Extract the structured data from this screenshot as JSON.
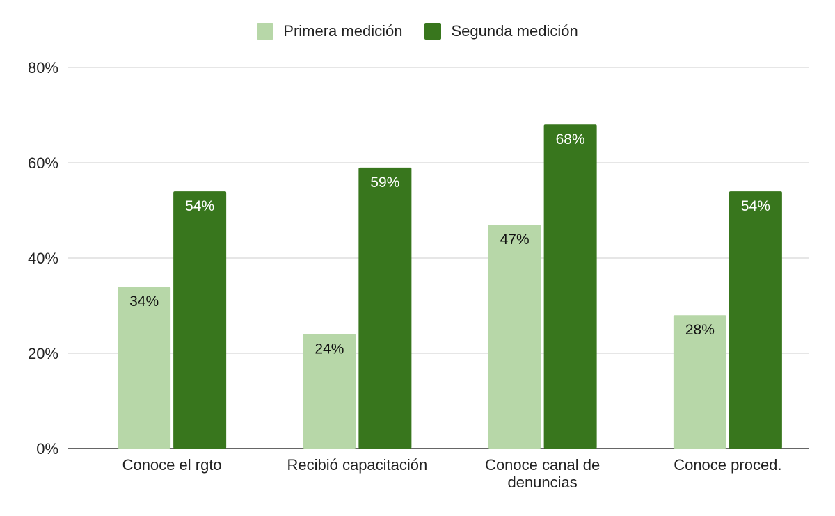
{
  "chart_data": {
    "type": "bar",
    "categories": [
      [
        "Conoce el rgto"
      ],
      [
        "Recibió capacitación"
      ],
      [
        "Conoce canal de",
        "denuncias"
      ],
      [
        "Conoce proced."
      ]
    ],
    "series": [
      {
        "name": "Primera medición",
        "color": "#b7d7a8",
        "values": [
          34,
          24,
          47,
          28
        ],
        "labels": [
          "34%",
          "24%",
          "47%",
          "28%"
        ],
        "label_color": "#111111"
      },
      {
        "name": "Segunda medición",
        "color": "#38761d",
        "values": [
          54,
          59,
          68,
          54
        ],
        "labels": [
          "54%",
          "59%",
          "68%",
          "54%"
        ],
        "label_color": "#ffffff"
      }
    ],
    "ylim": [
      0,
      80
    ],
    "yticks": [
      0,
      20,
      40,
      60,
      80
    ],
    "ytick_labels": [
      "0%",
      "20%",
      "40%",
      "60%",
      "80%"
    ],
    "grid": true,
    "legend_position": "top-center"
  }
}
